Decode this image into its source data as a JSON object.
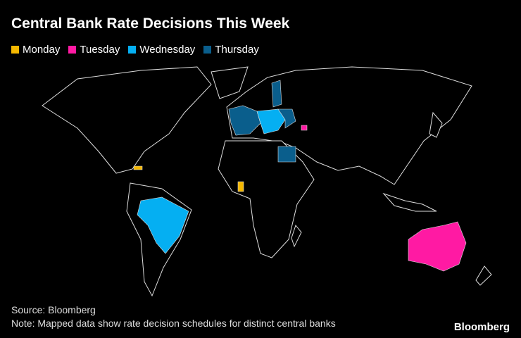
{
  "header": {
    "title": "Central Bank Rate Decisions This Week"
  },
  "legend": [
    {
      "name": "Monday",
      "color": "#f5b800"
    },
    {
      "name": "Tuesday",
      "color": "#ff1aa3"
    },
    {
      "name": "Wednesday",
      "color": "#05aff2"
    },
    {
      "name": "Thursday",
      "color": "#0a5e8c"
    }
  ],
  "footer": {
    "source": "Source: Bloomberg",
    "note": "Note: Mapped data show rate decision schedules for distinct central banks",
    "logo": "Bloomberg"
  }
}
